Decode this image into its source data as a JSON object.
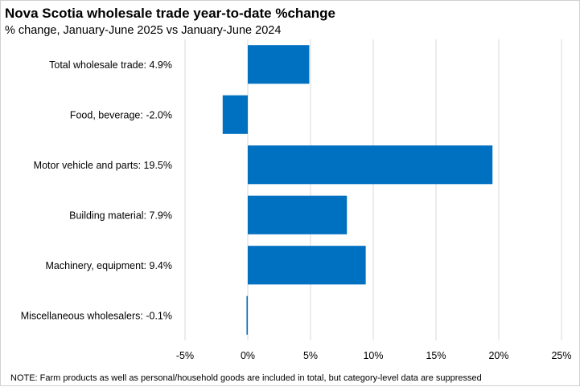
{
  "chart_data": {
    "type": "bar",
    "orientation": "horizontal",
    "title": "Nova Scotia wholesale trade year-to-date %change",
    "subtitle": "% change, January-June 2025 vs January-June 2024",
    "categories": [
      "Total wholesale trade: 4.9%",
      "Food, beverage: -2.0%",
      "Motor vehicle and parts: 19.5%",
      "Building material: 7.9%",
      "Machinery, equipment: 9.4%",
      "Miscellaneous wholesalers: -0.1%"
    ],
    "values": [
      4.9,
      -2.0,
      19.5,
      7.9,
      9.4,
      -0.1
    ],
    "xlim": [
      -5,
      25
    ],
    "xticks": [
      "-5%",
      "0%",
      "5%",
      "10%",
      "15%",
      "20%",
      "25%"
    ],
    "grid": "vertical",
    "bar_color": "#0070C0",
    "note": "NOTE:  Farm products as well as personal/household goods are included in total, but category-level  data are suppressed"
  }
}
